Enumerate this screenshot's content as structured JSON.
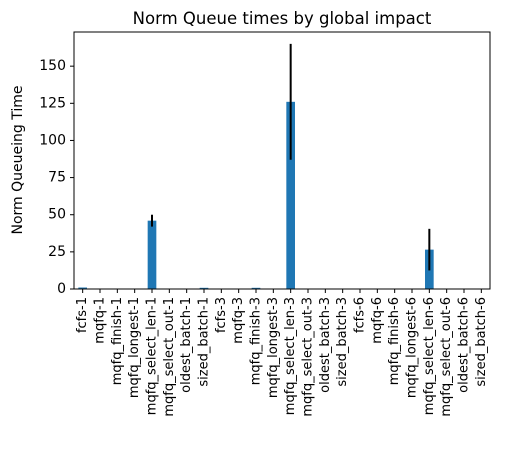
{
  "chart_data": {
    "type": "bar",
    "title": "Norm Queue times by global impact",
    "xlabel": "",
    "ylabel": "Norm Queueing Time",
    "ylim": [
      0,
      173
    ],
    "yticks": [
      0,
      25,
      50,
      75,
      100,
      125,
      150
    ],
    "grid": false,
    "legend": "none",
    "bar_color": "#1f77b4",
    "error_color": "#000000",
    "categories": [
      "fcfs-1",
      "mqfq-1",
      "mqfq_finish-1",
      "mqfq_longest-1",
      "mqfq_select_len-1",
      "mqfq_select_out-1",
      "oldest_batch-1",
      "sized_batch-1",
      "fcfs-3",
      "mqfq-3",
      "mqfq_finish-3",
      "mqfq_longest-3",
      "mqfq_select_len-3",
      "mqfq_select_out-3",
      "oldest_batch-3",
      "sized_batch-3",
      "fcfs-6",
      "mqfq-6",
      "mqfq_finish-6",
      "mqfq_longest-6",
      "mqfq_select_len-6",
      "mqfq_select_out-6",
      "oldest_batch-6",
      "sized_batch-6"
    ],
    "values": [
      1.0,
      0.3,
      0.3,
      0.2,
      46.0,
      0.2,
      0.3,
      0.8,
      0.2,
      0.3,
      0.8,
      0.2,
      126.0,
      0.2,
      0.2,
      0.2,
      0.2,
      0.2,
      0.2,
      0.2,
      26.5,
      0.2,
      0.2,
      0.2
    ],
    "errors": [
      0,
      0,
      0,
      0,
      4.0,
      0,
      0,
      0,
      0,
      0,
      0,
      0,
      39.0,
      0,
      0,
      0,
      0,
      0,
      0,
      0,
      14.0,
      0,
      0,
      0
    ]
  }
}
